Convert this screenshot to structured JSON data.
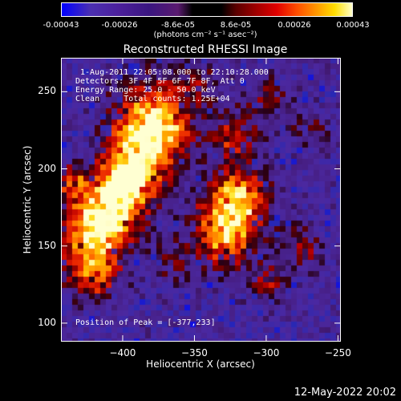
{
  "colorbar": {
    "ticks": [
      "-0.00043",
      "-0.00026",
      "-8.6e-05",
      "8.6e-05",
      "0.00026",
      "0.00043"
    ],
    "unit_label": "(photons cm⁻² s⁻¹ asec⁻²)"
  },
  "chart_data": {
    "type": "heatmap",
    "title": "Reconstructed RHESSI Image",
    "xlabel": "Heliocentric X (arcsec)",
    "ylabel": "Heliocentric Y (arcsec)",
    "xlim": [
      -443,
      -248
    ],
    "ylim": [
      88,
      272
    ],
    "x_ticks": [
      -400,
      -350,
      -300,
      -250
    ],
    "y_ticks": [
      100,
      150,
      200,
      250
    ],
    "x_tick_labels": [
      "-400",
      "-350",
      "-300",
      "-250"
    ],
    "y_tick_labels": [
      "100",
      "150",
      "200",
      "250"
    ],
    "color_range": [
      -0.00043,
      0.00043
    ],
    "annotations": {
      "time": "1-Aug-2011 22:05:08.000 to 22:10:28.000",
      "detectors": "Detectors: 3F 4F 5F 6F 7F 8F, Att 0",
      "energy": "Energy Range: 25.0 - 50.0 keV",
      "clean": "Clean     Total counts: 1.25E+04",
      "peak": "Position of Peak = [-377,233]"
    },
    "peak_position": [
      -377,
      233
    ],
    "sources": [
      {
        "x": -377,
        "y": 233
      },
      {
        "x": -325,
        "y": 168
      },
      {
        "x": -415,
        "y": 190
      },
      {
        "x": -420,
        "y": 145
      }
    ]
  },
  "timestamp": "12-May-2022 20:02"
}
